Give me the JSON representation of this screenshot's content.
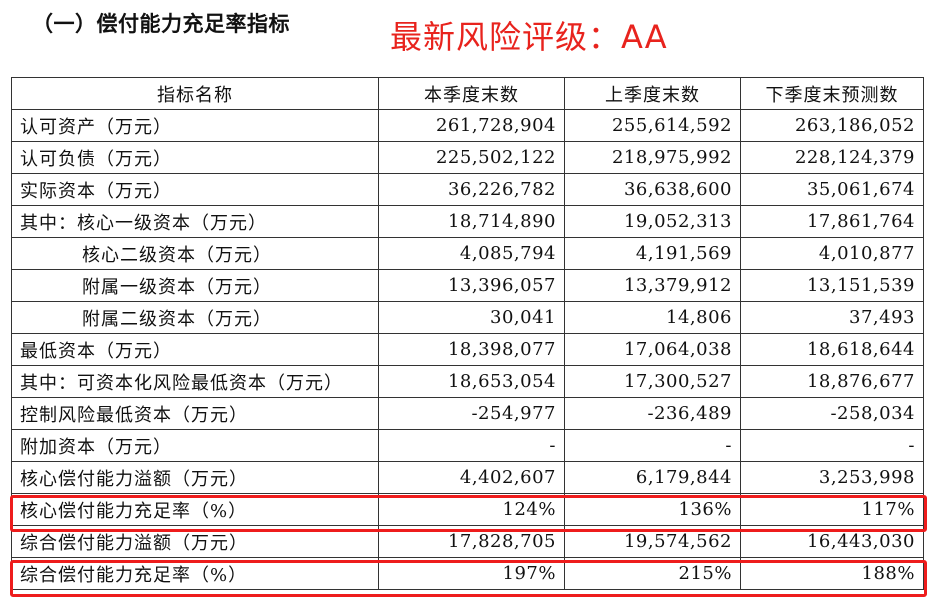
{
  "section_title": "（一）偿付能力充足率指标",
  "rating_text": "最新风险评级：AA",
  "colors": {
    "rating": "#e8231d",
    "highlight_border": "#ee1c1c"
  },
  "table": {
    "headers": [
      "指标名称",
      "本季度末数",
      "上季度末数",
      "下季度末预测数"
    ],
    "rows": [
      {
        "label": "认可资产（万元）",
        "current": "261,728,904",
        "previous": "255,614,592",
        "forecast": "263,186,052"
      },
      {
        "label": "认可负债（万元）",
        "current": "225,502,122",
        "previous": "218,975,992",
        "forecast": "228,124,379"
      },
      {
        "label": "实际资本（万元）",
        "current": "36,226,782",
        "previous": "36,638,600",
        "forecast": "35,061,674"
      },
      {
        "label": "其中：核心一级资本（万元）",
        "current": "18,714,890",
        "previous": "19,052,313",
        "forecast": "17,861,764"
      },
      {
        "label": "核心二级资本（万元）",
        "current": "4,085,794",
        "previous": "4,191,569",
        "forecast": "4,010,877"
      },
      {
        "label": "附属一级资本（万元）",
        "current": "13,396,057",
        "previous": "13,379,912",
        "forecast": "13,151,539"
      },
      {
        "label": "附属二级资本（万元）",
        "current": "30,041",
        "previous": "14,806",
        "forecast": "37,493"
      },
      {
        "label": "最低资本（万元）",
        "current": "18,398,077",
        "previous": "17,064,038",
        "forecast": "18,618,644"
      },
      {
        "label": "其中：可资本化风险最低资本（万元）",
        "current": "18,653,054",
        "previous": "17,300,527",
        "forecast": "18,876,677"
      },
      {
        "label": "控制风险最低资本（万元）",
        "current": "-254,977",
        "previous": "-236,489",
        "forecast": "-258,034"
      },
      {
        "label": "附加资本（万元）",
        "current": "-",
        "previous": "-",
        "forecast": "-"
      },
      {
        "label": "核心偿付能力溢额（万元）",
        "current": "4,402,607",
        "previous": "6,179,844",
        "forecast": "3,253,998"
      },
      {
        "label": "核心偿付能力充足率（%）",
        "current": "124%",
        "previous": "136%",
        "forecast": "117%"
      },
      {
        "label": "综合偿付能力溢额（万元）",
        "current": "17,828,705",
        "previous": "19,574,562",
        "forecast": "16,443,030"
      },
      {
        "label": "综合偿付能力充足率（%）",
        "current": "197%",
        "previous": "215%",
        "forecast": "188%"
      }
    ]
  }
}
